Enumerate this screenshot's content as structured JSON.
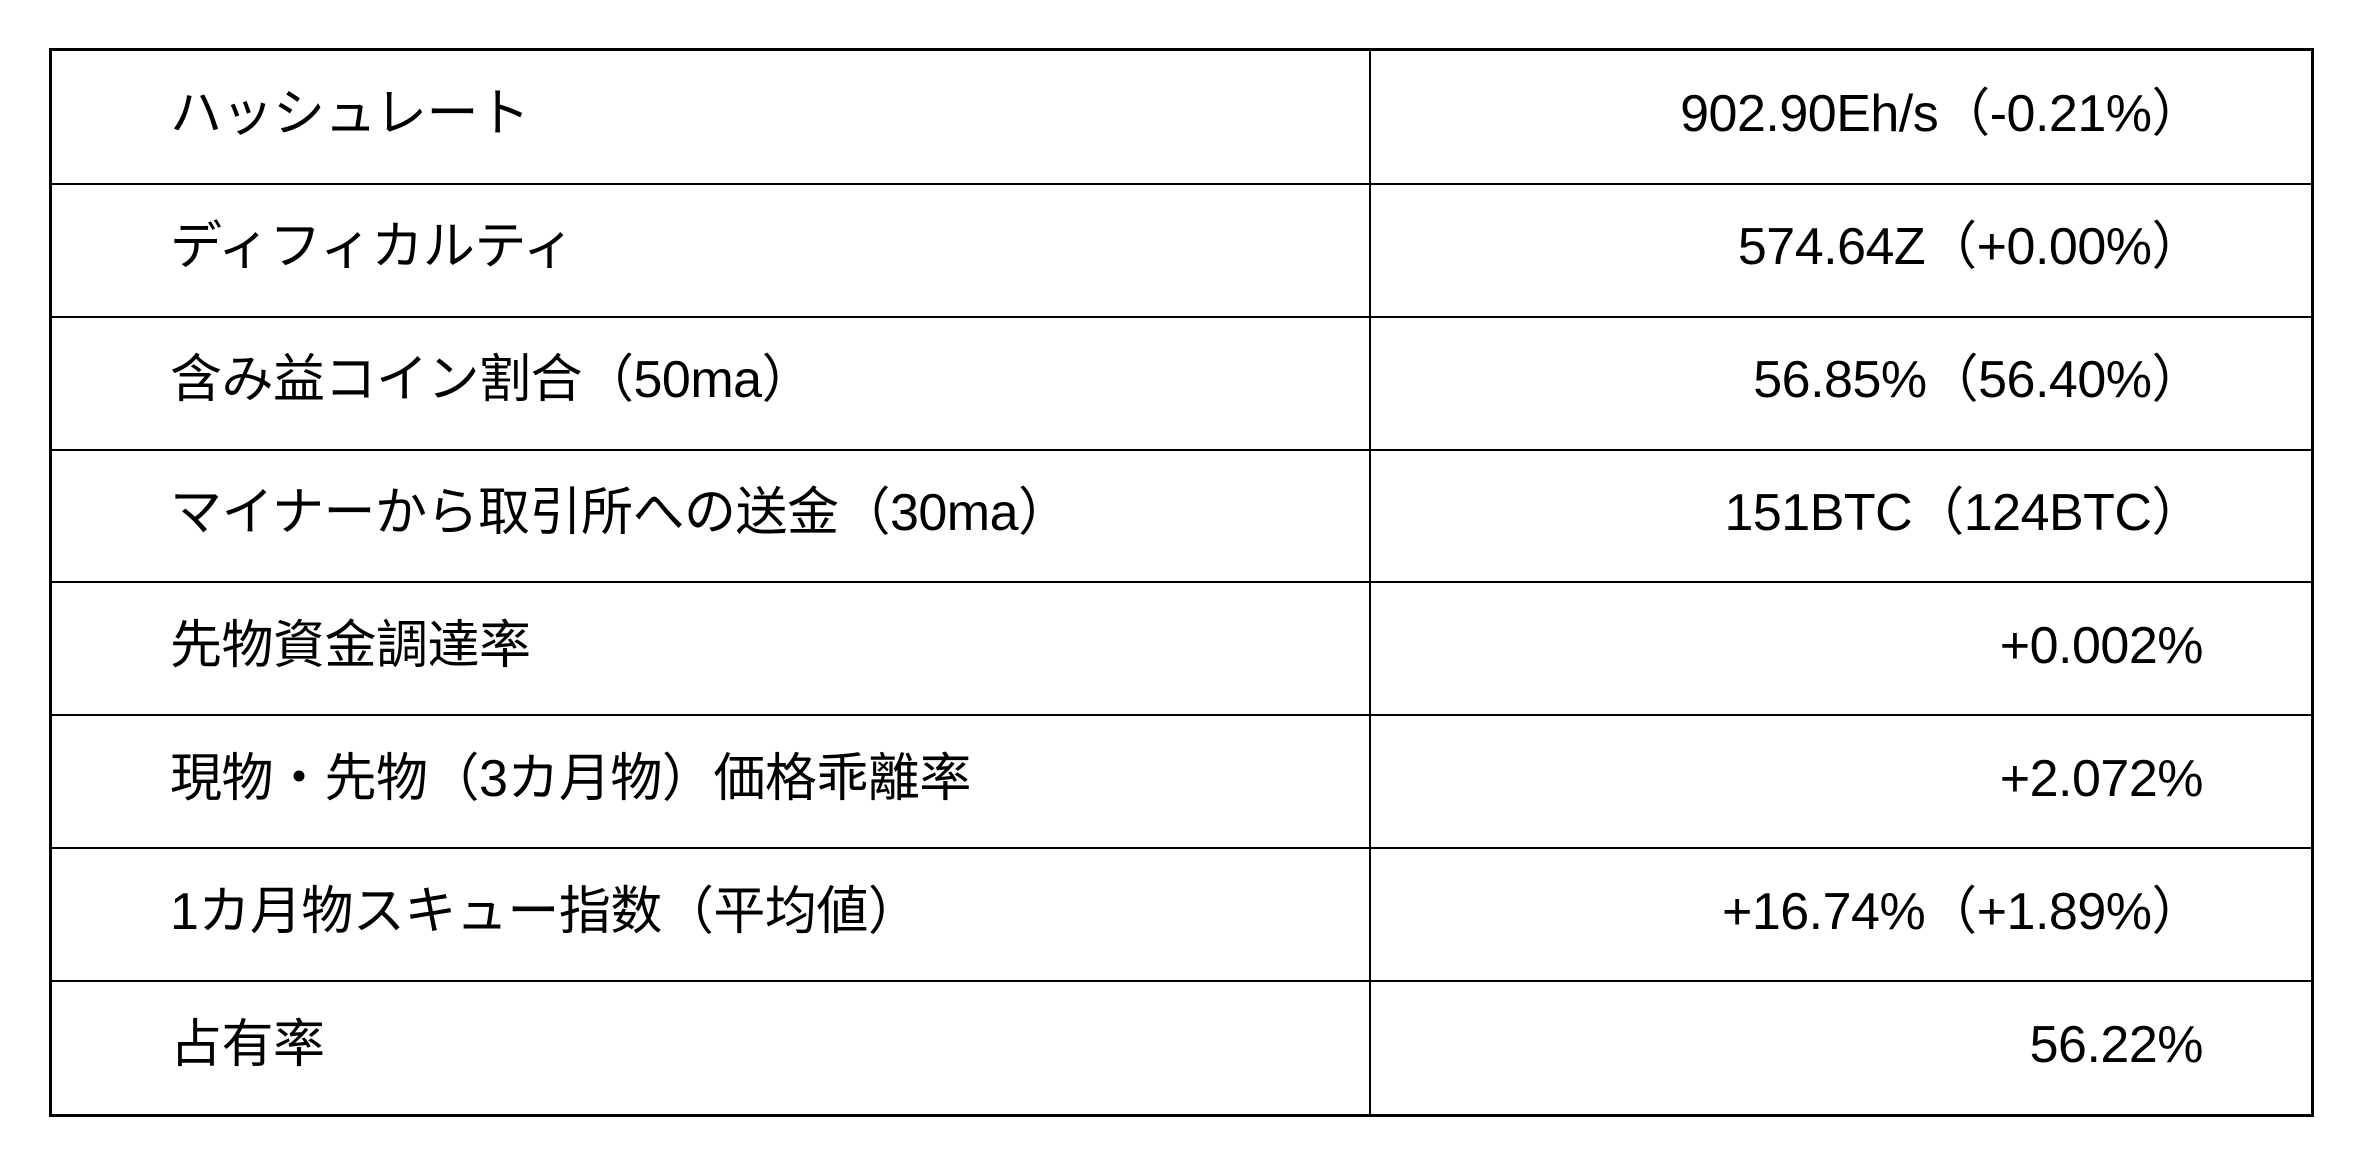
{
  "page": {
    "background": "#ffffff",
    "border_color": "#000000",
    "text_color": "#000000"
  },
  "chart_data": {
    "type": "table",
    "columns": [
      "metric",
      "value"
    ],
    "layout": {
      "rows": 8,
      "grid": "all-borders",
      "label_align": "left",
      "value_align": "right"
    },
    "rows": [
      {
        "label": "ハッシュレート",
        "value": "902.90Eh/s（-0.21%）"
      },
      {
        "label": "ディフィカルティ",
        "value": "574.64Z（+0.00%）"
      },
      {
        "label": "含み益コイン割合（50ma）",
        "value": "56.85%（56.40%）"
      },
      {
        "label": "マイナーから取引所への送金（30ma）",
        "value": "151BTC（124BTC）"
      },
      {
        "label": "先物資金調達率",
        "value": "+0.002%"
      },
      {
        "label": "現物・先物（3カ月物）価格乖離率",
        "value": "+2.072%"
      },
      {
        "label": "1カ月物スキュー指数（平均値）",
        "value": "+16.74%（+1.89%）"
      },
      {
        "label": "占有率",
        "value": "56.22%"
      }
    ]
  }
}
